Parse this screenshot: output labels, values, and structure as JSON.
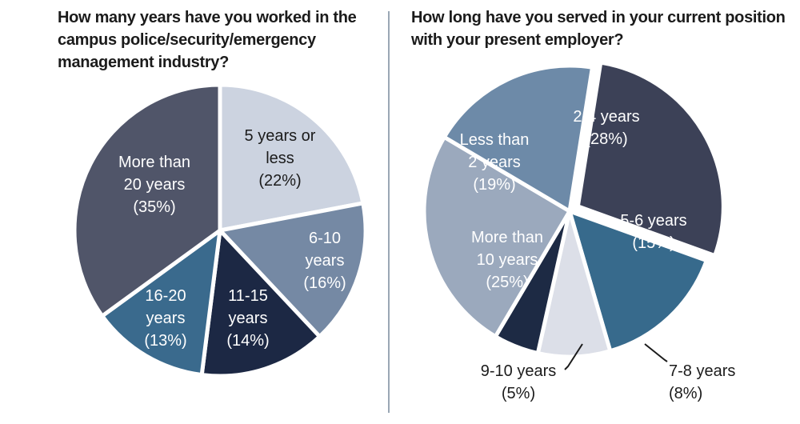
{
  "chart_data": [
    {
      "type": "pie",
      "title": "How many years have you worked in the campus police/security/emergency management industry?",
      "slices": [
        {
          "label": "5 years or less",
          "value": 22,
          "color": "#ccd3e0",
          "text_color": "#1b1b1b",
          "label_lines": [
            "5 years or",
            "less",
            "(22%)"
          ]
        },
        {
          "label": "6-10 years",
          "value": 16,
          "color": "#7589a4",
          "text_color": "#ffffff",
          "label_lines": [
            "6-10",
            "years",
            "(16%)"
          ]
        },
        {
          "label": "11-15 years",
          "value": 14,
          "color": "#1c2844",
          "text_color": "#ffffff",
          "label_lines": [
            "11-15",
            "years",
            "(14%)"
          ]
        },
        {
          "label": "16-20 years",
          "value": 13,
          "color": "#3a6a8d",
          "text_color": "#ffffff",
          "label_lines": [
            "16-20",
            "years",
            "(13%)"
          ]
        },
        {
          "label": "More than 20 years",
          "value": 35,
          "color": "#505569",
          "text_color": "#ffffff",
          "label_lines": [
            "More than",
            "20 years",
            "(35%)"
          ]
        }
      ]
    },
    {
      "type": "pie",
      "title": "How long have you served in your current position with your present employer?",
      "slices": [
        {
          "label": "2-4 years",
          "value": 28,
          "color": "#3c4157",
          "text_color": "#ffffff",
          "label_lines": [
            "2-4 years",
            "(28%)"
          ]
        },
        {
          "label": "5-6 years",
          "value": 15,
          "color": "#376a8c",
          "text_color": "#ffffff",
          "label_lines": [
            "5-6 years",
            "(15%)"
          ]
        },
        {
          "label": "7-8 years",
          "value": 8,
          "color": "#dcdfe8",
          "text_color": "#1b1b1b",
          "label_lines": [
            "7-8 years",
            "(8%)"
          ]
        },
        {
          "label": "9-10 years",
          "value": 5,
          "color": "#1d2a44",
          "text_color": "#1b1b1b",
          "label_lines": [
            "9-10 years",
            "(5%)"
          ]
        },
        {
          "label": "More than 10 years",
          "value": 25,
          "color": "#9ba9bd",
          "text_color": "#ffffff",
          "label_lines": [
            "More than",
            "10 years",
            "(25%)"
          ]
        },
        {
          "label": "Less than 2 years",
          "value": 19,
          "color": "#6d8aa8",
          "text_color": "#ffffff",
          "label_lines": [
            "Less than",
            "2 years",
            "(19%)"
          ]
        }
      ]
    }
  ]
}
